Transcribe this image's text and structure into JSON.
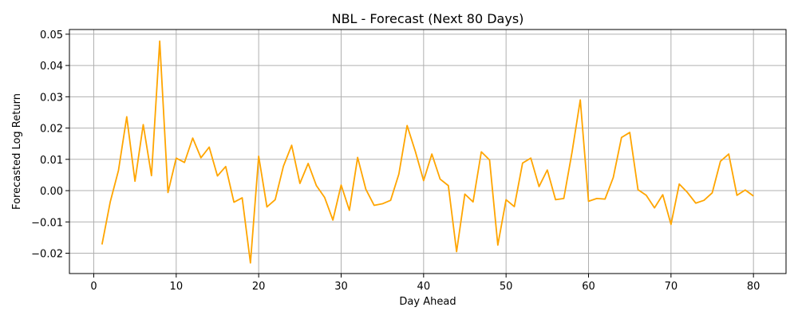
{
  "chart_data": {
    "type": "line",
    "title": "NBL - Forecast (Next 80 Days)",
    "xlabel": "Day Ahead",
    "ylabel": "Forecasted Log Return",
    "xlim": [
      -2.95,
      83.95
    ],
    "ylim": [
      -0.0265,
      0.0515
    ],
    "xticks": [
      0,
      10,
      20,
      30,
      40,
      50,
      60,
      70,
      80
    ],
    "xtick_labels": [
      "0",
      "10",
      "20",
      "30",
      "40",
      "50",
      "60",
      "70",
      "80"
    ],
    "yticks": [
      -0.02,
      -0.01,
      0.0,
      0.01,
      0.02,
      0.03,
      0.04,
      0.05
    ],
    "ytick_labels": [
      "−0.02",
      "−0.01",
      "0.00",
      "0.01",
      "0.02",
      "0.03",
      "0.04",
      "0.05"
    ],
    "grid": true,
    "line_color": "#ffa500",
    "grid_color": "#b0b0b0",
    "x": [
      1,
      2,
      3,
      4,
      5,
      6,
      7,
      8,
      9,
      10,
      11,
      12,
      13,
      14,
      15,
      16,
      17,
      18,
      19,
      20,
      21,
      22,
      23,
      24,
      25,
      26,
      27,
      28,
      29,
      30,
      31,
      32,
      33,
      34,
      35,
      36,
      37,
      38,
      39,
      40,
      41,
      42,
      43,
      44,
      45,
      46,
      47,
      48,
      49,
      50,
      51,
      52,
      53,
      54,
      55,
      56,
      57,
      58,
      59,
      60,
      61,
      62,
      63,
      64,
      65,
      66,
      67,
      68,
      69,
      70,
      71,
      72,
      73,
      74,
      75,
      76,
      77,
      78,
      79,
      80
    ],
    "series": [
      {
        "values": [
          -0.0172,
          -0.0036,
          0.0065,
          0.0236,
          0.003,
          0.0211,
          0.0048,
          0.0478,
          -0.0006,
          0.0104,
          0.009,
          0.0168,
          0.0105,
          0.0139,
          0.0047,
          0.0077,
          -0.0037,
          -0.0023,
          -0.0231,
          0.011,
          -0.0052,
          -0.0029,
          0.0078,
          0.0145,
          0.0023,
          0.0087,
          0.0016,
          -0.0022,
          -0.0094,
          0.0018,
          -0.0063,
          0.0106,
          0.0004,
          -0.0047,
          -0.0042,
          -0.0031,
          0.0053,
          0.0208,
          0.0125,
          0.0032,
          0.0117,
          0.0037,
          0.0016,
          -0.0195,
          -0.0011,
          -0.0036,
          0.0124,
          0.0098,
          -0.0174,
          -0.0029,
          -0.0051,
          0.0088,
          0.0104,
          0.0013,
          0.0066,
          -0.0029,
          -0.0025,
          0.0123,
          0.029,
          -0.0034,
          -0.0025,
          -0.0027,
          0.0042,
          0.017,
          0.0186,
          0.0003,
          -0.0015,
          -0.0055,
          -0.0013,
          -0.0108,
          0.0021,
          -0.0006,
          -0.004,
          -0.0031,
          -0.0007,
          0.0094,
          0.0117,
          -0.0015,
          0.0002,
          -0.0017
        ]
      }
    ]
  }
}
